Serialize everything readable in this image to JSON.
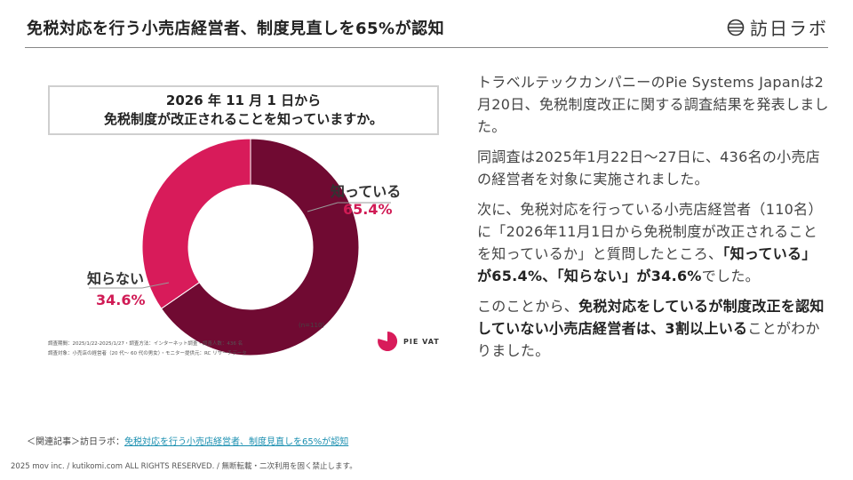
{
  "header": {
    "title": "免税対応を行う小売店経営者、制度見直しを65%が認知",
    "brand_name": "訪日ラボ",
    "brand_icon": "globe-icon"
  },
  "chart": {
    "question_line1": "2026 年 11 月 1 日から",
    "question_line2": "免税制度が改正されることを知っていますか。",
    "n_label": "(n=110)",
    "survey_meta_line1": "調査期間：2025/1/22-2025/1/27・調査方法：インターネット調査・調査人数：436 名",
    "survey_meta_line2": "調査対象：小売店の経営者（20 代〜 60 代の男女）・モニター提供元：RC リサーチデータ",
    "logo_text": "PIE VAT"
  },
  "chart_data": {
    "type": "pie",
    "title": "2026 年 11 月 1 日から免税制度が改正されることを知っていますか。",
    "categories": [
      "知っている",
      "知らない"
    ],
    "values": [
      65.4,
      34.6
    ],
    "value_labels": [
      "65.4%",
      "34.6%"
    ],
    "colors": [
      "#700a32",
      "#d81b5a"
    ],
    "donut": true,
    "n": "(n=110)"
  },
  "body": {
    "p1": "トラベルテックカンパニーのPie Systems Japanは2月20日、免税制度改正に関する調査結果を発表しました。",
    "p2": "同調査は2025年1月22日〜27日に、436名の小売店の経営者を対象に実施されました。",
    "p3_a": "次に、免税対応を行っている小売店経営者（110名）に「2026年11月1日から免税制度が改正されることを知っているか」と質問したところ、",
    "p3_b": "「知っている」が65.4%、「知らない」が34.6%",
    "p3_c": "でした。",
    "p4_a": "このことから、",
    "p4_b": "免税対応をしているが制度改正を認知していない小売店経営者は、3割以上いる",
    "p4_c": "ことがわかりました。"
  },
  "footer": {
    "related_prefix": "＜関連記事＞訪日ラボ：",
    "related_link": "免税対応を行う小売店経営者、制度見直しを65%が認知",
    "copyright": "2025 mov inc. / kutikomi.com ALL RIGHTS RESERVED. / 無断転載・二次利用を固く禁止します。"
  }
}
